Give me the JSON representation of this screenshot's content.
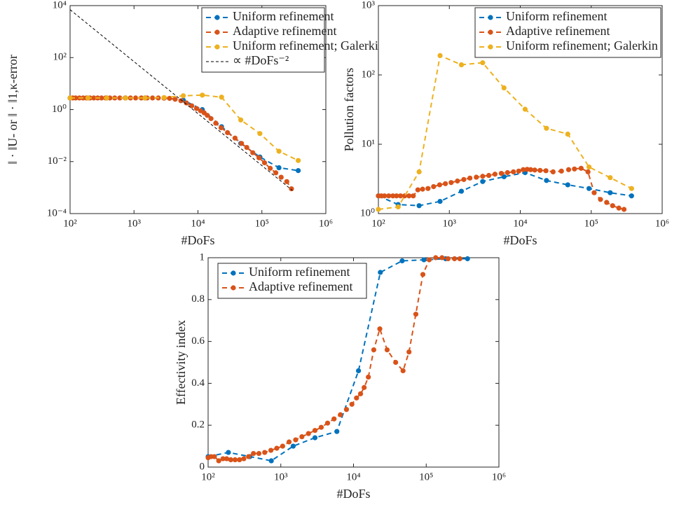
{
  "chart_data": [
    {
      "type": "line",
      "xlog": true,
      "ylog": true,
      "xlabel": "#DoFs",
      "ylabel": "‖ · ‖U- or ‖ · ‖1,κ-error",
      "legend": "top-right",
      "xlim": [
        100,
        1000000
      ],
      "ylim": [
        0.0001,
        10000
      ],
      "xticks": [
        {
          "value": 100,
          "label": "10²"
        },
        {
          "value": 1000,
          "label": "10³"
        },
        {
          "value": 10000,
          "label": "10⁴"
        },
        {
          "value": 100000,
          "label": "10⁵"
        },
        {
          "value": 1000000,
          "label": "10⁶"
        }
      ],
      "yticks": [
        {
          "value": 0.0001,
          "label": "10⁻⁴"
        },
        {
          "value": 0.01,
          "label": "10⁻²"
        },
        {
          "value": 1,
          "label": "10⁰"
        },
        {
          "value": 100,
          "label": "10²"
        },
        {
          "value": 10000,
          "label": "10⁴"
        }
      ],
      "series": [
        {
          "name": "Uniform refinement",
          "color": "#0072BD",
          "marker": true,
          "x": [
            100,
            190,
            375,
            740,
            1480,
            2950,
            5900,
            11700,
            23400,
            46700,
            93000,
            185000,
            370000
          ],
          "values": [
            2.8,
            2.8,
            2.8,
            2.8,
            2.8,
            2.8,
            2.3,
            1.0,
            0.22,
            0.05,
            0.015,
            0.0058,
            0.0045
          ]
        },
        {
          "name": "Adaptive refinement",
          "color": "#D95319",
          "marker": true,
          "x": [
            100,
            110,
            122,
            140,
            160,
            180,
            205,
            235,
            270,
            310,
            360,
            420,
            500,
            600,
            730,
            880,
            1060,
            1300,
            1600,
            1950,
            2400,
            2950,
            3600,
            4400,
            5400,
            6600,
            8000,
            9500,
            11000,
            12500,
            14000,
            16000,
            19000,
            23000,
            29000,
            38000,
            48000,
            58000,
            72000,
            90000,
            110000,
            135000,
            165000,
            200000,
            245000,
            290000
          ],
          "values": [
            2.8,
            2.8,
            2.8,
            2.8,
            2.8,
            2.8,
            2.8,
            2.8,
            2.8,
            2.8,
            2.8,
            2.8,
            2.8,
            2.8,
            2.8,
            2.8,
            2.8,
            2.8,
            2.8,
            2.8,
            2.8,
            2.75,
            2.7,
            2.5,
            2.2,
            1.8,
            1.4,
            1.1,
            0.9,
            0.75,
            0.6,
            0.45,
            0.3,
            0.2,
            0.13,
            0.08,
            0.05,
            0.035,
            0.022,
            0.014,
            0.009,
            0.0055,
            0.0037,
            0.0025,
            0.0017,
            0.0009
          ]
        },
        {
          "name": "Uniform refinement; Galerkin",
          "color": "#EDB120",
          "marker": true,
          "x": [
            100,
            190,
            375,
            740,
            1480,
            2950,
            5900,
            11700,
            23400,
            46700,
            93000,
            185000,
            370000
          ],
          "values": [
            2.8,
            2.8,
            2.8,
            2.8,
            2.8,
            2.9,
            3.4,
            3.6,
            3.0,
            0.4,
            0.12,
            0.025,
            0.011
          ]
        },
        {
          "name": "∝ #DoFs⁻²",
          "color": "#000000",
          "marker": false,
          "dash": true,
          "x": [
            100,
            300000
          ],
          "values": [
            7000,
            0.00078
          ]
        }
      ]
    },
    {
      "type": "line",
      "xlog": true,
      "ylog": true,
      "xlabel": "#DoFs",
      "ylabel": "Pollution factors",
      "legend": "top-right",
      "xlim": [
        100,
        1000000
      ],
      "ylim": [
        1,
        1000
      ],
      "xticks": [
        {
          "value": 100,
          "label": "10²"
        },
        {
          "value": 1000,
          "label": "10³"
        },
        {
          "value": 10000,
          "label": "10⁴"
        },
        {
          "value": 100000,
          "label": "10⁵"
        },
        {
          "value": 1000000,
          "label": "10⁶"
        }
      ],
      "yticks": [
        {
          "value": 1,
          "label": "10⁰"
        },
        {
          "value": 10,
          "label": "10¹"
        },
        {
          "value": 100,
          "label": "10²"
        },
        {
          "value": 1000,
          "label": "10³"
        }
      ],
      "series": [
        {
          "name": "Uniform refinement",
          "color": "#0072BD",
          "marker": true,
          "x": [
            100,
            190,
            375,
            740,
            1480,
            2950,
            5900,
            11700,
            23400,
            46700,
            93000,
            185000,
            370000
          ],
          "values": [
            1.8,
            1.35,
            1.3,
            1.5,
            2.1,
            2.9,
            3.4,
            3.9,
            3.0,
            2.6,
            2.3,
            2.0,
            1.8
          ]
        },
        {
          "name": "Adaptive refinement",
          "color": "#D95319",
          "marker": true,
          "x": [
            100,
            110,
            122,
            140,
            160,
            180,
            205,
            235,
            270,
            310,
            360,
            420,
            500,
            600,
            730,
            880,
            1060,
            1300,
            1600,
            1950,
            2400,
            2950,
            3600,
            4400,
            5400,
            6600,
            8000,
            9500,
            11000,
            12500,
            14000,
            16000,
            19000,
            23000,
            29000,
            38000,
            48000,
            58000,
            72000,
            90000,
            110000,
            135000,
            165000,
            200000,
            245000,
            290000
          ],
          "values": [
            1.8,
            1.8,
            1.8,
            1.8,
            1.8,
            1.8,
            1.8,
            1.8,
            1.8,
            1.8,
            2.2,
            2.25,
            2.3,
            2.45,
            2.6,
            2.7,
            2.8,
            2.95,
            3.1,
            3.25,
            3.35,
            3.45,
            3.55,
            3.7,
            3.8,
            3.9,
            4.0,
            4.1,
            4.3,
            4.35,
            4.3,
            4.25,
            4.2,
            4.15,
            4.0,
            4.1,
            4.3,
            4.4,
            4.5,
            4.0,
            2.0,
            1.6,
            1.45,
            1.3,
            1.2,
            1.15
          ]
        },
        {
          "name": "Uniform refinement; Galerkin",
          "color": "#EDB120",
          "marker": true,
          "x": [
            100,
            190,
            375,
            740,
            1480,
            2950,
            5900,
            11700,
            23400,
            46700,
            93000,
            185000,
            370000
          ],
          "values": [
            1.15,
            1.25,
            4,
            190,
            140,
            150,
            65,
            32,
            17,
            14,
            4.7,
            3.3,
            2.3
          ]
        }
      ]
    },
    {
      "type": "line",
      "xlog": true,
      "ylog": false,
      "xlabel": "#DoFs",
      "ylabel": "Effectivity index",
      "legend": "top-left",
      "xlim": [
        100,
        1000000
      ],
      "ylim": [
        0,
        1
      ],
      "xticks": [
        {
          "value": 100,
          "label": "10²"
        },
        {
          "value": 1000,
          "label": "10³"
        },
        {
          "value": 10000,
          "label": "10⁴"
        },
        {
          "value": 100000,
          "label": "10⁵"
        },
        {
          "value": 1000000,
          "label": "10⁶"
        }
      ],
      "yticks": [
        0,
        0.2,
        0.4,
        0.6,
        0.8,
        1
      ],
      "series": [
        {
          "name": "Uniform refinement",
          "color": "#0072BD",
          "marker": true,
          "x": [
            100,
            190,
            375,
            740,
            1480,
            2950,
            5900,
            11700,
            23400,
            46700,
            93000,
            185000,
            370000
          ],
          "values": [
            0.05,
            0.07,
            0.05,
            0.03,
            0.1,
            0.14,
            0.17,
            0.46,
            0.93,
            0.985,
            0.99,
            0.995,
            0.995
          ]
        },
        {
          "name": "Adaptive refinement",
          "color": "#D95319",
          "marker": true,
          "x": [
            100,
            110,
            122,
            140,
            160,
            180,
            205,
            235,
            270,
            310,
            360,
            420,
            500,
            600,
            730,
            880,
            1060,
            1300,
            1600,
            1950,
            2400,
            2950,
            3600,
            4400,
            5400,
            6600,
            8000,
            9500,
            11000,
            12500,
            14000,
            16000,
            19000,
            23000,
            29000,
            38000,
            48000,
            58000,
            72000,
            90000,
            110000,
            135000,
            165000,
            200000,
            245000,
            290000
          ],
          "values": [
            0.045,
            0.05,
            0.05,
            0.03,
            0.04,
            0.04,
            0.035,
            0.035,
            0.035,
            0.04,
            0.05,
            0.065,
            0.065,
            0.07,
            0.08,
            0.09,
            0.1,
            0.12,
            0.13,
            0.145,
            0.16,
            0.175,
            0.19,
            0.21,
            0.23,
            0.25,
            0.275,
            0.3,
            0.33,
            0.35,
            0.38,
            0.43,
            0.56,
            0.66,
            0.56,
            0.5,
            0.46,
            0.55,
            0.73,
            0.92,
            0.99,
            1.0,
            1.0,
            0.995,
            0.995,
            0.995
          ]
        }
      ]
    }
  ]
}
